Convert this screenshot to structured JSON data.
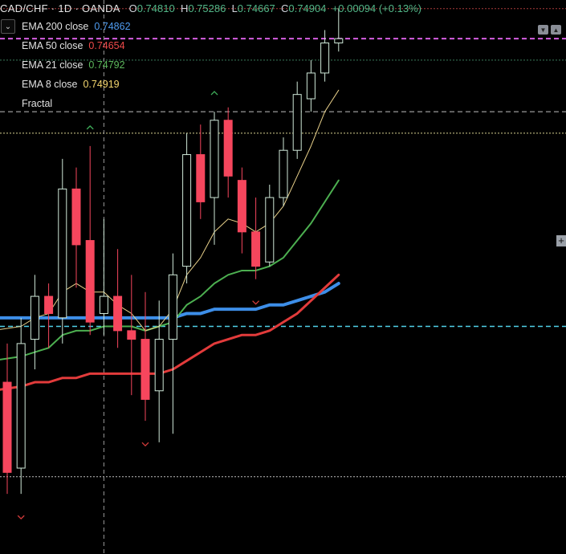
{
  "header": {
    "symbol": "CAD/CHF · 1D · OANDA",
    "o_label": "O",
    "o_value": "0.74810",
    "h_label": "H",
    "h_value": "0.75286",
    "l_label": "L",
    "l_value": "0.74667",
    "c_label": "C",
    "c_value": "0.74904",
    "change": "+0.00094 (+0.13%)"
  },
  "legend": [
    {
      "label": "EMA 200 close",
      "value": "0.74862",
      "color": "#4f9cf0"
    },
    {
      "label": "EMA 50 close",
      "value": "0.74654",
      "color": "#ef4a4a"
    },
    {
      "label": "EMA 21 close",
      "value": "0.74792",
      "color": "#5cb85c"
    },
    {
      "label": "EMA 8 close",
      "value": "0.74919",
      "color": "#f5d76e"
    },
    {
      "label": "Fractal",
      "value": "",
      "color": "#e0e0e0"
    }
  ],
  "colors": {
    "up": "#26a69a",
    "down": "#f6465d",
    "ema200": "#3d8ee8",
    "ema50": "#e23b3b",
    "ema21": "#4caf50",
    "ema8": "#e8d08a",
    "cyan_line": "#4fd0e8",
    "magenta_line": "#d45ee0"
  },
  "chart_data": {
    "type": "candlestick",
    "ylim": [
      0.7405,
      0.7534
    ],
    "candles": [
      {
        "o": 0.7445,
        "h": 0.7454,
        "l": 0.7419,
        "c": 0.7424
      },
      {
        "o": 0.7425,
        "h": 0.746,
        "l": 0.7419,
        "c": 0.7454
      },
      {
        "o": 0.7455,
        "h": 0.747,
        "l": 0.7448,
        "c": 0.7465
      },
      {
        "o": 0.7465,
        "h": 0.7468,
        "l": 0.7453,
        "c": 0.7461
      },
      {
        "o": 0.746,
        "h": 0.7497,
        "l": 0.7454,
        "c": 0.749
      },
      {
        "o": 0.749,
        "h": 0.7495,
        "l": 0.7467,
        "c": 0.7477
      },
      {
        "o": 0.7478,
        "h": 0.75,
        "l": 0.7456,
        "c": 0.7459
      },
      {
        "o": 0.7461,
        "h": 0.7483,
        "l": 0.7456,
        "c": 0.7465
      },
      {
        "o": 0.7465,
        "h": 0.7476,
        "l": 0.7453,
        "c": 0.7457
      },
      {
        "o": 0.7457,
        "h": 0.747,
        "l": 0.7442,
        "c": 0.7455
      },
      {
        "o": 0.7455,
        "h": 0.7466,
        "l": 0.7436,
        "c": 0.7441
      },
      {
        "o": 0.7443,
        "h": 0.7464,
        "l": 0.7431,
        "c": 0.7455
      },
      {
        "o": 0.7455,
        "h": 0.7475,
        "l": 0.7433,
        "c": 0.747
      },
      {
        "o": 0.7472,
        "h": 0.7503,
        "l": 0.7468,
        "c": 0.7498
      },
      {
        "o": 0.7498,
        "h": 0.7505,
        "l": 0.7483,
        "c": 0.7487
      },
      {
        "o": 0.7488,
        "h": 0.7508,
        "l": 0.7477,
        "c": 0.7506
      },
      {
        "o": 0.7506,
        "h": 0.7509,
        "l": 0.7488,
        "c": 0.7493
      },
      {
        "o": 0.7492,
        "h": 0.7495,
        "l": 0.7475,
        "c": 0.748
      },
      {
        "o": 0.748,
        "h": 0.7488,
        "l": 0.7469,
        "c": 0.7472
      },
      {
        "o": 0.7473,
        "h": 0.7491,
        "l": 0.7472,
        "c": 0.7488
      },
      {
        "o": 0.7488,
        "h": 0.7502,
        "l": 0.7486,
        "c": 0.7499
      },
      {
        "o": 0.7499,
        "h": 0.7515,
        "l": 0.7497,
        "c": 0.7512
      },
      {
        "o": 0.7511,
        "h": 0.752,
        "l": 0.7508,
        "c": 0.7517
      },
      {
        "o": 0.7517,
        "h": 0.7527,
        "l": 0.7515,
        "c": 0.7524
      },
      {
        "o": 0.7524,
        "h": 0.7532,
        "l": 0.7522,
        "c": 0.7525
      }
    ],
    "ema8": [
      0.7457,
      0.7458,
      0.746,
      0.7461,
      0.7466,
      0.7468,
      0.7466,
      0.7466,
      0.7463,
      0.7461,
      0.7457,
      0.7458,
      0.7462,
      0.747,
      0.7474,
      0.748,
      0.7483,
      0.7482,
      0.748,
      0.7482,
      0.7486,
      0.7493,
      0.75,
      0.7508,
      0.7513
    ],
    "ema21": [
      0.745,
      0.7451,
      0.7452,
      0.7453,
      0.7456,
      0.7457,
      0.7457,
      0.7458,
      0.7458,
      0.7458,
      0.7457,
      0.7458,
      0.7459,
      0.7463,
      0.7465,
      0.7468,
      0.747,
      0.7471,
      0.7471,
      0.7472,
      0.7474,
      0.7478,
      0.7482,
      0.7487,
      0.7492
    ],
    "ema50": [
      0.7443,
      0.7444,
      0.7445,
      0.7445,
      0.7446,
      0.7446,
      0.7447,
      0.7447,
      0.7447,
      0.7447,
      0.7447,
      0.7447,
      0.7448,
      0.745,
      0.7452,
      0.7454,
      0.7455,
      0.7456,
      0.7456,
      0.7457,
      0.7459,
      0.7461,
      0.7464,
      0.7467,
      0.747
    ],
    "ema200": [
      0.746,
      0.746,
      0.746,
      0.746,
      0.746,
      0.746,
      0.746,
      0.746,
      0.746,
      0.746,
      0.746,
      0.746,
      0.746,
      0.7461,
      0.7461,
      0.7462,
      0.7462,
      0.7462,
      0.7462,
      0.7463,
      0.7463,
      0.7464,
      0.7465,
      0.7466,
      0.7468
    ],
    "fractals_up": [
      6,
      15
    ],
    "fractals_down": [
      1,
      10,
      18
    ],
    "hlines": [
      {
        "price": 0.7525,
        "color": "#d45ee0",
        "style": "dashed",
        "width": 2
      },
      {
        "price": 0.7458,
        "color": "#4fd0e8",
        "style": "dashed",
        "width": 1.5
      },
      {
        "price": 0.7532,
        "color": "#a83a3a",
        "style": "dotted",
        "width": 1
      },
      {
        "price": 0.752,
        "color": "#3a7a5a",
        "style": "dotted",
        "width": 1
      },
      {
        "price": 0.7508,
        "color": "#bfbfbf",
        "style": "dashed",
        "width": 1
      },
      {
        "price": 0.7503,
        "color": "#d8cf90",
        "style": "dotted",
        "width": 1
      },
      {
        "price": 0.7423,
        "color": "#bfbfbf",
        "style": "dotted",
        "width": 1
      }
    ],
    "crosshair_index": 7
  }
}
